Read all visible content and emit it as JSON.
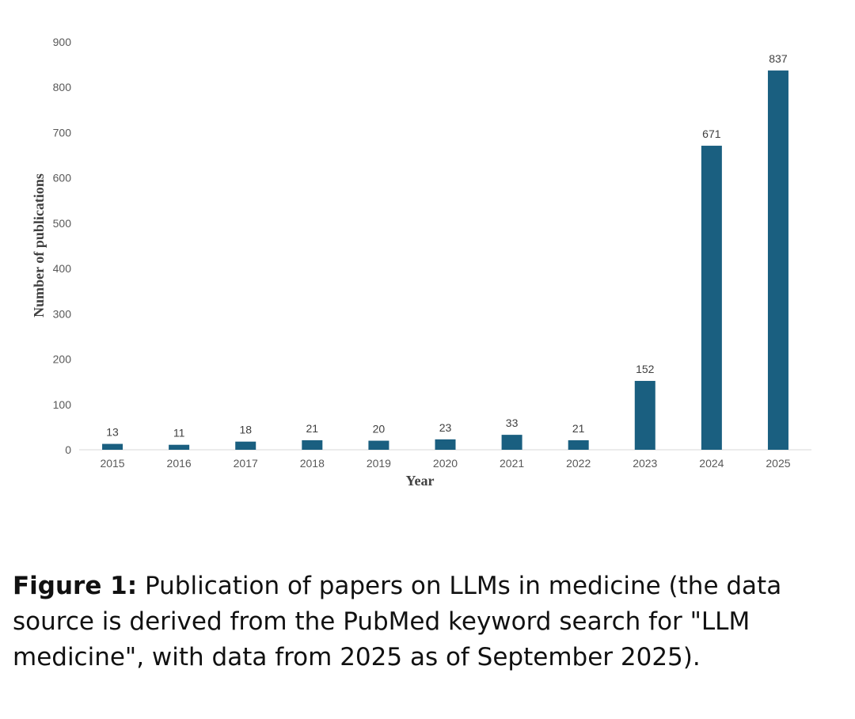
{
  "chart_data": {
    "type": "bar",
    "categories": [
      "2015",
      "2016",
      "2017",
      "2018",
      "2019",
      "2020",
      "2021",
      "2022",
      "2023",
      "2024",
      "2025"
    ],
    "values": [
      13,
      11,
      18,
      21,
      20,
      23,
      33,
      21,
      152,
      671,
      837
    ],
    "xlabel": "Year",
    "ylabel": "Number of publications",
    "ylim": [
      0,
      900
    ],
    "yticks": [
      0,
      100,
      200,
      300,
      400,
      500,
      600,
      700,
      800,
      900
    ],
    "grid": false,
    "legend": "none",
    "bar_color": "#1a5f80"
  },
  "caption": {
    "label": "Figure 1:",
    "text": " Publication of papers on LLMs in medicine (the data source is derived from the PubMed keyword search for \"LLM medicine\", with data from 2025 as of September 2025)."
  }
}
